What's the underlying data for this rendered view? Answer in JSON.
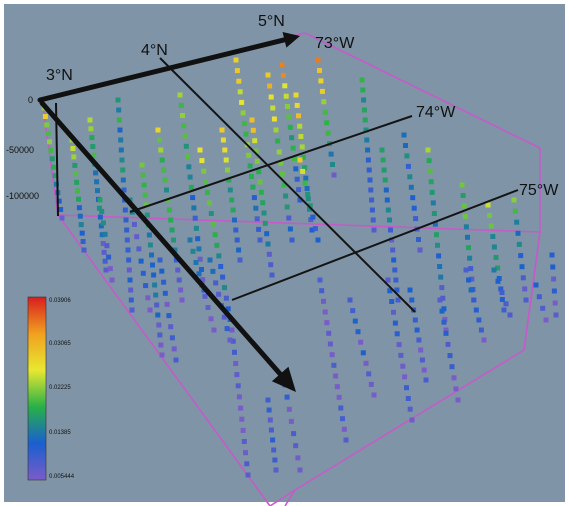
{
  "lat_labels": [
    "3°N",
    "4°N",
    "5°N"
  ],
  "lon_labels": [
    "73°W",
    "74°W",
    "75°W"
  ],
  "depth_ticks": [
    "0",
    "-50000",
    "-100000"
  ],
  "colorbar": {
    "ticks": [
      "0.03906",
      "0.03065",
      "0.02225",
      "0.01385",
      "0.005444"
    ],
    "stops": [
      "#d81e1e",
      "#f0a020",
      "#e8e830",
      "#28b048",
      "#1a5fd0",
      "#7a5cc8"
    ]
  },
  "colors": {
    "background": "#7f94a6",
    "frame": "#ffffff",
    "box_edge": "#c45cc8",
    "grid_line": "#141414",
    "arrow": "#111111"
  }
}
